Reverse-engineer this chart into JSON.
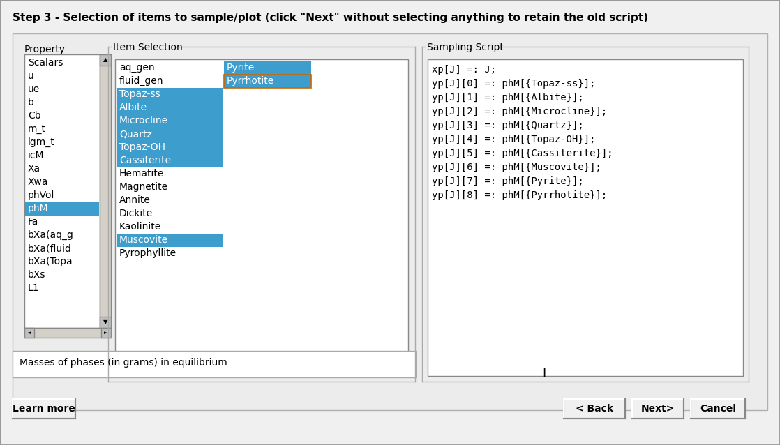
{
  "title": "Step 3 - Selection of items to sample/plot (click \"Next\" without selecting anything to retain the old script)",
  "bg_color": "#f0f0f0",
  "title_fontsize": 11,
  "property_label": "Property",
  "item_selection_label": "Item Selection",
  "sampling_script_label": "Sampling Script",
  "property_items": [
    "Scalars",
    "u",
    "ue",
    "b",
    "Cb",
    "m_t",
    "lgm_t",
    "icM",
    "Xa",
    "Xwa",
    "phVol",
    "phM",
    "Fa",
    "bXa(aq_g",
    "bXa(fluid",
    "bXa(Topa",
    "bXs",
    "L1"
  ],
  "property_selected": [
    "phM"
  ],
  "item_col1": [
    "aq_gen",
    "fluid_gen",
    "Topaz-ss",
    "Albite",
    "Microcline",
    "Quartz",
    "Topaz-OH",
    "Cassiterite",
    "Hematite",
    "Magnetite",
    "Annite",
    "Dickite",
    "Kaolinite",
    "Muscovite",
    "Pyrophyllite"
  ],
  "item_col2": [
    "Pyrite",
    "Pyrrhotite"
  ],
  "item_selected_col1": [
    "Topaz-ss",
    "Albite",
    "Microcline",
    "Quartz",
    "Topaz-OH",
    "Cassiterite",
    "Muscovite"
  ],
  "item_selected_col2": [
    "Pyrite",
    "Pyrrhotite"
  ],
  "sampling_script_lines": [
    "xp[J] =: J;",
    "yp[J][0] =: phM[{Topaz-ss}];",
    "yp[J][1] =: phM[{Albite}];",
    "yp[J][2] =: phM[{Microcline}];",
    "yp[J][3] =: phM[{Quartz}];",
    "yp[J][4] =: phM[{Topaz-OH}];",
    "yp[J][5] =: phM[{Cassiterite}];",
    "yp[J][6] =: phM[{Muscovite}];",
    "yp[J][7] =: phM[{Pyrite}];",
    "yp[J][8] =: phM[{Pyrrhotite}];"
  ],
  "status_text": "Masses of phases (in grams) in equilibrium",
  "btn_learn_more": "Learn more",
  "btn_back": "< Back",
  "btn_next": "Next>",
  "btn_cancel": "Cancel",
  "highlight_blue": "#3d9dcc",
  "text_white": "#ffffff",
  "text_black": "#000000",
  "listbox_bg": "#ffffff",
  "border_color": "#aaaaaa",
  "scrollbar_bg": "#d4d0c8",
  "scrollbar_btn": "#c0c0c0",
  "panel_bg": "#ececec"
}
